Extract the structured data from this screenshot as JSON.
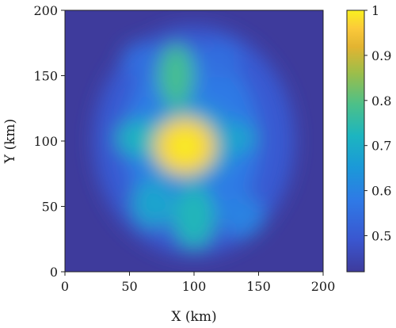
{
  "chart_data": {
    "type": "heatmap",
    "title": "",
    "xlabel": "X (km)",
    "ylabel": "Y (km)",
    "xlim": [
      0,
      200
    ],
    "ylim": [
      0,
      200
    ],
    "x_ticks": [
      "0",
      "50",
      "100",
      "150",
      "200"
    ],
    "y_ticks": [
      "0",
      "50",
      "100",
      "150",
      "200"
    ],
    "colorbar": {
      "range": [
        0.42,
        1.0
      ],
      "ticks": [
        "0.5",
        "0.6",
        "0.7",
        "0.8",
        "0.9",
        "1"
      ],
      "colormap": "parula"
    },
    "background_value": 0.42,
    "features": [
      {
        "name": "central peak",
        "x": 93,
        "y": 96,
        "value": 0.97
      },
      {
        "name": "upper lobe",
        "x": 86,
        "y": 150,
        "value": 0.78
      },
      {
        "name": "lower lobe",
        "x": 100,
        "y": 42,
        "value": 0.73
      },
      {
        "name": "left branch",
        "x": 58,
        "y": 102,
        "value": 0.72
      },
      {
        "name": "right branch",
        "x": 130,
        "y": 102,
        "value": 0.68
      },
      {
        "name": "lower-left ring",
        "x": 68,
        "y": 52,
        "value": 0.68
      },
      {
        "name": "lower-right ring",
        "x": 138,
        "y": 42,
        "value": 0.6
      },
      {
        "name": "upper-left ring",
        "x": 60,
        "y": 162,
        "value": 0.55
      },
      {
        "name": "upper-right ring",
        "x": 120,
        "y": 162,
        "value": 0.55
      }
    ]
  },
  "colors": {
    "background": "#3e3b9c",
    "peak": "#f9f020"
  }
}
